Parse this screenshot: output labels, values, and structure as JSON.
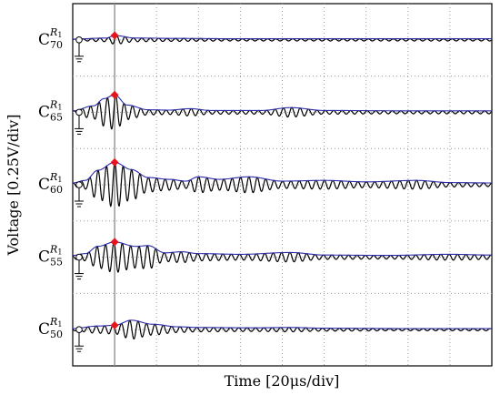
{
  "chart_data": {
    "type": "line",
    "title": "",
    "xlabel": "Time [20μs/div]",
    "ylabel": "Voltage [0.25V/div]",
    "x_unit_per_div": "20μs",
    "y_unit_per_div": "0.25V",
    "x_divisions": 10,
    "y_divisions": 10,
    "grid": true,
    "marker_time_div": 1.0,
    "colors": {
      "signal": "#000000",
      "envelope": "#2b2ba8",
      "marker": "#e8141b",
      "cursor": "#8a8a8a"
    },
    "series": [
      {
        "name": "C",
        "base": "C",
        "sup": "R1",
        "sub": "70",
        "baseline_div": 9.0,
        "envelope": [
          [
            0,
            0.02
          ],
          [
            0.8,
            0.05
          ],
          [
            1.0,
            0.12
          ],
          [
            1.5,
            0.05
          ],
          [
            2.5,
            0.04
          ],
          [
            4,
            0.03
          ],
          [
            6,
            0.03
          ],
          [
            8,
            0.03
          ],
          [
            10,
            0.03
          ]
        ]
      },
      {
        "name": "C",
        "base": "C",
        "sup": "R1",
        "sub": "65",
        "baseline_div": 7.0,
        "envelope": [
          [
            0,
            0.04
          ],
          [
            0.5,
            0.18
          ],
          [
            0.75,
            0.38
          ],
          [
            1.0,
            0.48
          ],
          [
            1.3,
            0.2
          ],
          [
            1.8,
            0.07
          ],
          [
            2.3,
            0.06
          ],
          [
            2.8,
            0.1
          ],
          [
            3.3,
            0.05
          ],
          [
            4.5,
            0.05
          ],
          [
            5.2,
            0.13
          ],
          [
            6,
            0.05
          ],
          [
            8,
            0.04
          ],
          [
            10,
            0.04
          ]
        ]
      },
      {
        "name": "C",
        "base": "C",
        "sup": "R1",
        "sub": "60",
        "baseline_div": 5.0,
        "envelope": [
          [
            0,
            0.05
          ],
          [
            0.3,
            0.12
          ],
          [
            0.6,
            0.4
          ],
          [
            1.0,
            0.62
          ],
          [
            1.4,
            0.42
          ],
          [
            1.8,
            0.2
          ],
          [
            2.3,
            0.15
          ],
          [
            2.7,
            0.1
          ],
          [
            3.0,
            0.22
          ],
          [
            3.5,
            0.15
          ],
          [
            4.2,
            0.22
          ],
          [
            5,
            0.1
          ],
          [
            6,
            0.12
          ],
          [
            7,
            0.08
          ],
          [
            8.2,
            0.12
          ],
          [
            9,
            0.06
          ],
          [
            10,
            0.05
          ]
        ]
      },
      {
        "name": "C",
        "base": "C",
        "sup": "R1",
        "sub": "55",
        "baseline_div": 3.0,
        "envelope": [
          [
            0,
            0.05
          ],
          [
            0.3,
            0.1
          ],
          [
            0.6,
            0.3
          ],
          [
            1.0,
            0.42
          ],
          [
            1.5,
            0.3
          ],
          [
            1.8,
            0.32
          ],
          [
            2.2,
            0.12
          ],
          [
            2.6,
            0.15
          ],
          [
            3,
            0.1
          ],
          [
            4,
            0.08
          ],
          [
            5.2,
            0.13
          ],
          [
            6,
            0.06
          ],
          [
            7.5,
            0.05
          ],
          [
            9,
            0.08
          ],
          [
            10,
            0.06
          ]
        ]
      },
      {
        "name": "C",
        "base": "C",
        "sup": "R1",
        "sub": "50",
        "baseline_div": 1.0,
        "envelope": [
          [
            0,
            0.03
          ],
          [
            0.6,
            0.1
          ],
          [
            1.0,
            0.12
          ],
          [
            1.4,
            0.26
          ],
          [
            1.9,
            0.15
          ],
          [
            2.5,
            0.08
          ],
          [
            3,
            0.06
          ],
          [
            4.3,
            0.05
          ],
          [
            5.2,
            0.06
          ],
          [
            6,
            0.04
          ],
          [
            8,
            0.03
          ],
          [
            10,
            0.03
          ]
        ]
      }
    ]
  }
}
